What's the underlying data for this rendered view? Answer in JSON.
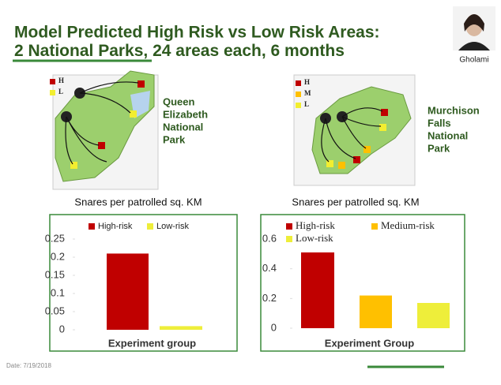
{
  "slide": {
    "title_line1": "Model Predicted High Risk vs Low Risk Areas:",
    "title_line2_underlined": "2 National Parks",
    "title_line2_rest": ", 24 areas each, 6 months",
    "presenter": "Gholami",
    "date": "Date: 7/19/2018"
  },
  "maps": [
    {
      "name_lines": [
        "Queen",
        "Elizabeth",
        "National",
        "Park"
      ],
      "legend": [
        "H",
        "L"
      ]
    },
    {
      "name_lines": [
        "Murchison",
        "Falls",
        "National",
        "Park"
      ],
      "legend": [
        "H",
        "M",
        "L"
      ]
    }
  ],
  "chart_data": [
    {
      "type": "bar",
      "title": "Snares per patrolled sq. KM",
      "xlabel": "Experiment group",
      "series": [
        {
          "name": "High-risk",
          "color": "#c00000",
          "values": [
            0.21
          ]
        },
        {
          "name": "Low-risk",
          "color": "#eeee3a",
          "values": [
            0.01
          ]
        }
      ],
      "ylim": [
        0,
        0.25
      ],
      "yticks": [
        0,
        0.05,
        0.1,
        0.15,
        0.2,
        0.25
      ]
    },
    {
      "type": "bar",
      "title": "Snares per patrolled sq. KM",
      "xlabel": "Experiment Group",
      "series": [
        {
          "name": "High-risk",
          "color": "#c00000",
          "values": [
            0.51
          ]
        },
        {
          "name": "Medium-risk",
          "color": "#ffc000",
          "values": [
            0.22
          ]
        },
        {
          "name": "Low-risk",
          "color": "#eeee3a",
          "values": [
            0.17
          ]
        }
      ],
      "ylim": [
        0,
        0.6
      ],
      "yticks": [
        0,
        0.2,
        0.4,
        0.6
      ]
    }
  ]
}
